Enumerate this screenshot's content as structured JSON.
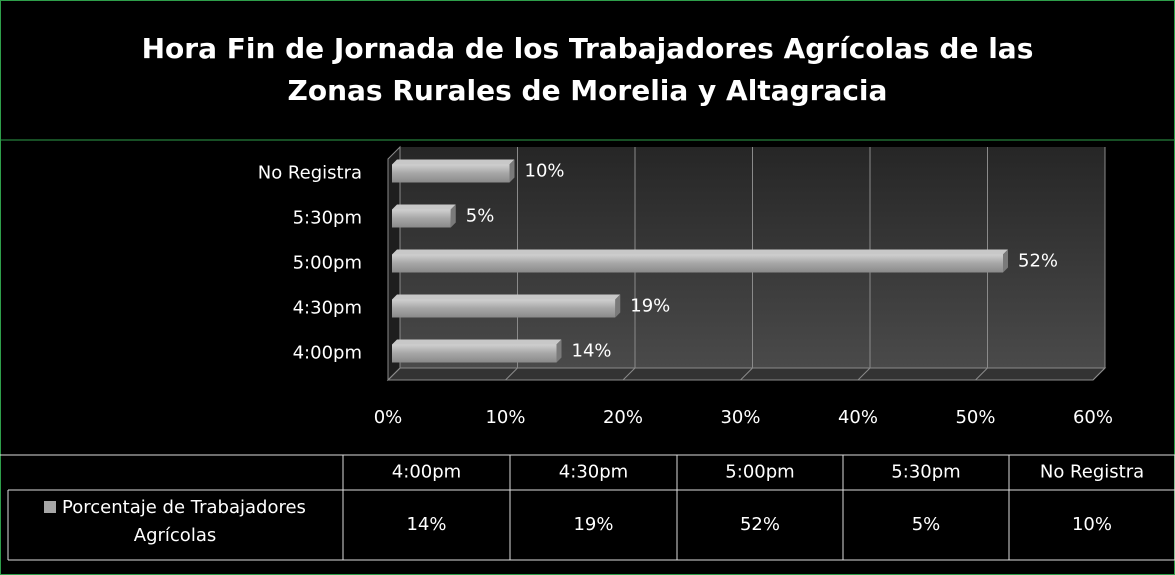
{
  "chart_data": {
    "type": "bar",
    "orientation": "horizontal",
    "title": "Hora Fin de Jornada de los Trabajadores Agrícolas de las Zonas Rurales de Morelia y Altagracia",
    "categories": [
      "4:00pm",
      "4:30pm",
      "5:00pm",
      "5:30pm",
      "No Registra"
    ],
    "series": [
      {
        "name": "Porcentaje de Trabajadores Agrícolas",
        "color": "#a6a6a6",
        "values": [
          14,
          19,
          52,
          5,
          10
        ],
        "value_labels": [
          "14%",
          "19%",
          "52%",
          "5%",
          "10%"
        ]
      }
    ],
    "xlim": [
      0,
      60
    ],
    "xticks": [
      {
        "value": 0,
        "label": "0%"
      },
      {
        "value": 10,
        "label": "10%"
      },
      {
        "value": 20,
        "label": "20%"
      },
      {
        "value": 30,
        "label": "30%"
      },
      {
        "value": 40,
        "label": "40%"
      },
      {
        "value": 50,
        "label": "50%"
      },
      {
        "value": 60,
        "label": "60%"
      }
    ],
    "grid": true,
    "data_table": true
  }
}
